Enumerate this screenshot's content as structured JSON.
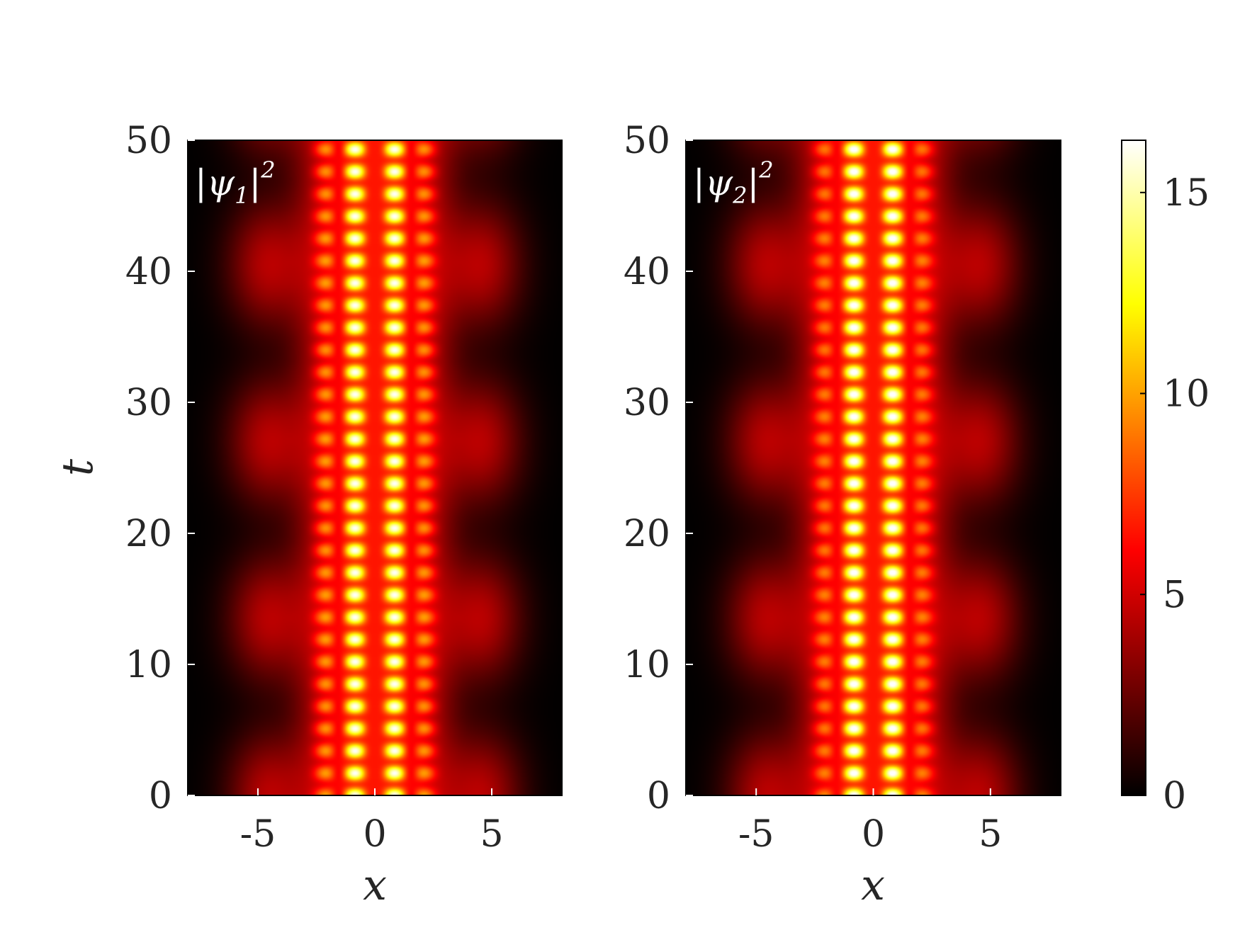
{
  "chart_data": {
    "type": "heatmap",
    "colormap": "hot",
    "colorbar": {
      "range": [
        0,
        16.3
      ],
      "ticks": [
        0,
        5,
        10,
        15
      ],
      "tick_labels": [
        "0",
        "5",
        "10",
        "15"
      ]
    },
    "panels": [
      {
        "label": "|ψ₁|²",
        "label_parts": {
          "open": "|",
          "psi": "ψ",
          "sub": "1",
          "close": "|",
          "sup": "2"
        },
        "xlabel": "x",
        "ylabel": "t",
        "xlim": [
          -8,
          8
        ],
        "ylim": [
          0,
          50
        ],
        "xticks": [
          -5,
          0,
          5
        ],
        "xtick_labels": [
          "-5",
          "0",
          "5"
        ],
        "yticks": [
          0,
          10,
          20,
          30,
          40,
          50
        ],
        "ytick_labels": [
          "0",
          "10",
          "20",
          "30",
          "40",
          "50"
        ],
        "lobes": [
          -1.2,
          1.2
        ],
        "fringe_period_t": 1.7,
        "breathing_period_t": 13.5,
        "halo_center_x": 4.6
      },
      {
        "label": "|ψ₂|²",
        "label_parts": {
          "open": "|",
          "psi": "ψ",
          "sub": "2",
          "close": "|",
          "sup": "2"
        },
        "xlabel": "x",
        "ylabel": "",
        "xlim": [
          -8,
          8
        ],
        "ylim": [
          0,
          50
        ],
        "xticks": [
          -5,
          0,
          5
        ],
        "xtick_labels": [
          "-5",
          "0",
          "5"
        ],
        "yticks": [
          0,
          10,
          20,
          30,
          40,
          50
        ],
        "ytick_labels": [
          "0",
          "10",
          "20",
          "30",
          "40",
          "50"
        ],
        "lobes": [
          -1.1,
          1.1
        ],
        "fringe_period_t": 1.7,
        "breathing_period_t": 13.5,
        "halo_center_x": 4.6
      }
    ]
  }
}
